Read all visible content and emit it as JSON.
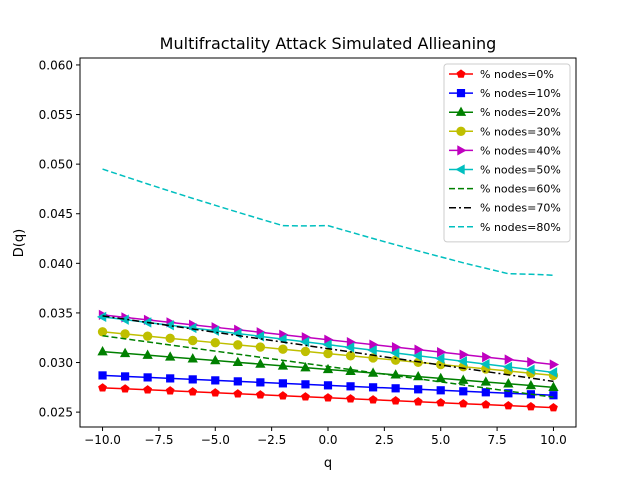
{
  "chart_data": {
    "type": "line",
    "title": "Multifractality Attack Simulated Allieaning",
    "xlabel": "q",
    "ylabel": "D(q)",
    "xlim": [
      -11,
      11
    ],
    "ylim": [
      0.0235,
      0.0607
    ],
    "x_ticks": [
      -10,
      -7.5,
      -5,
      -2.5,
      0,
      2.5,
      5,
      7.5,
      10
    ],
    "x_tick_labels": [
      "−10.0",
      "−7.5",
      "−5.0",
      "−2.5",
      "0.0",
      "2.5",
      "5.0",
      "7.5",
      "10.0"
    ],
    "y_ticks": [
      0.025,
      0.03,
      0.035,
      0.04,
      0.045,
      0.05,
      0.055,
      0.06
    ],
    "y_tick_labels": [
      "0.025",
      "0.030",
      "0.035",
      "0.040",
      "0.045",
      "0.050",
      "0.055",
      "0.060"
    ],
    "x": [
      -10,
      -9,
      -8,
      -7,
      -6,
      -5,
      -4,
      -3,
      -2,
      -1,
      0,
      1,
      2,
      3,
      4,
      5,
      6,
      7,
      8,
      9,
      10
    ],
    "legend_position": "top-right",
    "grid": false,
    "series": [
      {
        "name": "% nodes=0%",
        "color": "#ff0000",
        "marker": "pentagon",
        "linestyle": "solid",
        "values": [
          0.02745,
          0.02735,
          0.02725,
          0.02715,
          0.02705,
          0.02695,
          0.02685,
          0.02675,
          0.02665,
          0.02655,
          0.02645,
          0.02635,
          0.02625,
          0.02615,
          0.02605,
          0.02595,
          0.02585,
          0.02575,
          0.02565,
          0.02555,
          0.02545
        ]
      },
      {
        "name": "% nodes=10%",
        "color": "#0000ff",
        "marker": "square",
        "linestyle": "solid",
        "values": [
          0.0287,
          0.0286,
          0.0285,
          0.0284,
          0.0283,
          0.0282,
          0.0281,
          0.028,
          0.0279,
          0.0278,
          0.0277,
          0.0276,
          0.0275,
          0.0274,
          0.0273,
          0.0272,
          0.0271,
          0.027,
          0.0269,
          0.0268,
          0.0267
        ]
      },
      {
        "name": "% nodes=20%",
        "color": "#008000",
        "marker": "triangle-up",
        "linestyle": "solid",
        "values": [
          0.0311,
          0.03092,
          0.03074,
          0.03056,
          0.03038,
          0.0302,
          0.03002,
          0.02984,
          0.02966,
          0.02948,
          0.0293,
          0.02912,
          0.02894,
          0.02876,
          0.02858,
          0.0284,
          0.02822,
          0.02804,
          0.02786,
          0.02768,
          0.0275
        ]
      },
      {
        "name": "% nodes=30%",
        "color": "#bfbf00",
        "marker": "circle",
        "linestyle": "solid",
        "values": [
          0.0331,
          0.03288,
          0.03266,
          0.03244,
          0.03222,
          0.032,
          0.03178,
          0.03156,
          0.03134,
          0.03112,
          0.0309,
          0.03068,
          0.03046,
          0.03024,
          0.03002,
          0.0298,
          0.02958,
          0.02936,
          0.02914,
          0.02892,
          0.0287
        ]
      },
      {
        "name": "% nodes=40%",
        "color": "#bf00bf",
        "marker": "triangle-right",
        "linestyle": "solid",
        "values": [
          0.0348,
          0.03455,
          0.0343,
          0.03405,
          0.0338,
          0.03355,
          0.0333,
          0.03305,
          0.0328,
          0.03255,
          0.0323,
          0.03205,
          0.0318,
          0.03155,
          0.0313,
          0.03105,
          0.0308,
          0.03055,
          0.0303,
          0.03005,
          0.0298
        ]
      },
      {
        "name": "% nodes=50%",
        "color": "#00bfbf",
        "marker": "triangle-left",
        "linestyle": "solid",
        "values": [
          0.0346,
          0.03432,
          0.03404,
          0.03376,
          0.03348,
          0.0332,
          0.03292,
          0.03264,
          0.03236,
          0.03208,
          0.0318,
          0.03152,
          0.03124,
          0.03096,
          0.03068,
          0.0304,
          0.03012,
          0.02984,
          0.02956,
          0.02928,
          0.029
        ]
      },
      {
        "name": "% nodes=60%",
        "color": "#008000",
        "marker": "none",
        "linestyle": "dashed",
        "values": [
          0.0327,
          0.03239,
          0.03208,
          0.03177,
          0.03146,
          0.03115,
          0.03084,
          0.03053,
          0.03022,
          0.02991,
          0.0296,
          0.02929,
          0.02898,
          0.02867,
          0.02836,
          0.02805,
          0.02774,
          0.02743,
          0.02712,
          0.02681,
          0.0265
        ]
      },
      {
        "name": "% nodes=70%",
        "color": "#000000",
        "marker": "none",
        "linestyle": "dashdot",
        "values": [
          0.0347,
          0.03437,
          0.03404,
          0.03371,
          0.03338,
          0.03305,
          0.03272,
          0.03239,
          0.03206,
          0.03173,
          0.0314,
          0.03107,
          0.03074,
          0.03041,
          0.03008,
          0.02975,
          0.02942,
          0.02909,
          0.02876,
          0.02843,
          0.0281
        ]
      },
      {
        "name": "% nodes=80%",
        "color": "#00bfbf",
        "marker": "none",
        "linestyle": "dashed",
        "values": [
          0.0495,
          0.04875,
          0.048,
          0.04727,
          0.04655,
          0.04585,
          0.04515,
          0.04447,
          0.0438,
          0.04377,
          0.0438,
          0.04315,
          0.0425,
          0.04187,
          0.04125,
          0.04065,
          0.04005,
          0.0395,
          0.03895,
          0.0389,
          0.0388
        ]
      }
    ]
  }
}
